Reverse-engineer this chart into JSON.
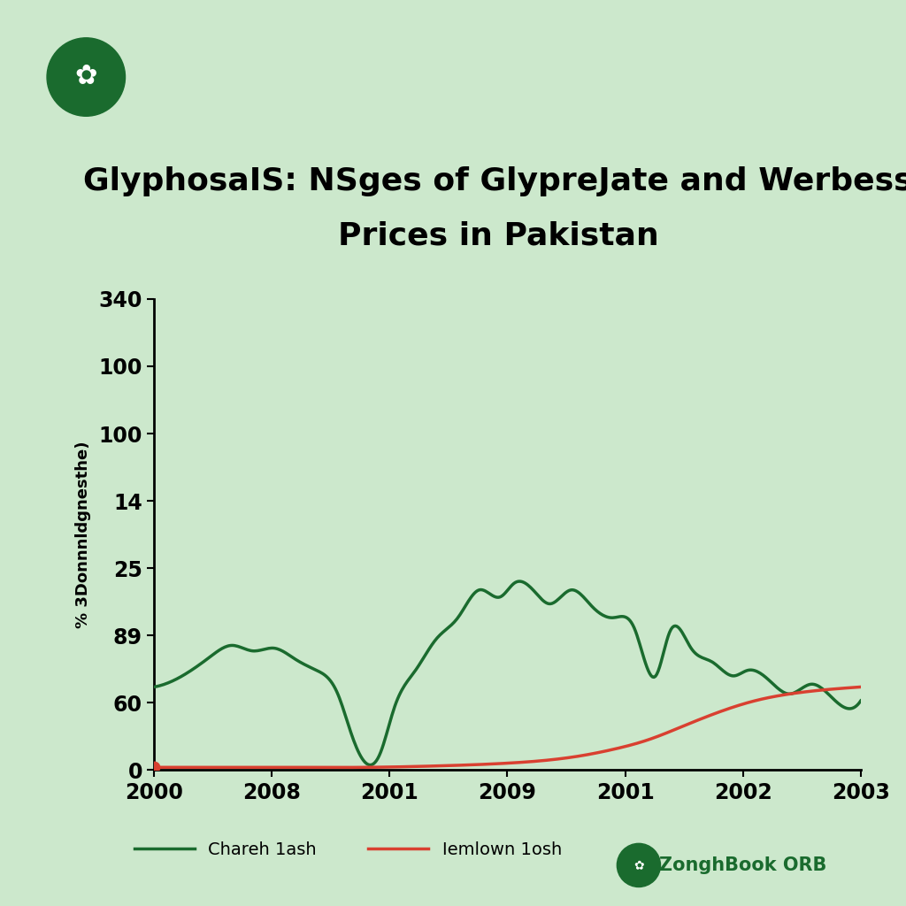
{
  "title_line1": "GlyphosaIS: NSges of GlypreJate and Werbess",
  "title_line2": "Prices in Pakistan",
  "background_color": "#cce8cc",
  "green_line_color": "#1a6b2e",
  "red_line_color": "#d94030",
  "ylabel": "% 3Donnnldgnesthe)",
  "legend_label1": "Chareh 1ash",
  "legend_label2": "Iemlown 1osh",
  "x_tick_labels": [
    "2000",
    "2008",
    "2001",
    "2009",
    "2001",
    "2002",
    "2003"
  ],
  "y_tick_labels_bottom_to_top": [
    "0",
    "60",
    "89",
    "25",
    "14",
    "100",
    "100",
    "340"
  ],
  "ylim_min": 0,
  "ylim_max": 340,
  "xlim_min": 2000,
  "xlim_max": 2024,
  "title_fontsize": 26,
  "tick_fontsize": 17,
  "watermark_text": "ZonghBook ORB",
  "watermark_color": "#1a6b2e",
  "logo_color": "#1a6b2e"
}
